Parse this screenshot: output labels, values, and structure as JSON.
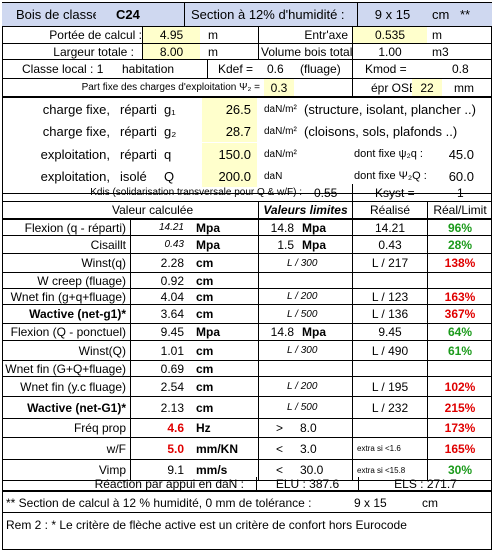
{
  "header": {
    "label": "Bois de classe",
    "classe": "C24",
    "section_label": "Section à 12% d'humidité :",
    "section": "9 x 15",
    "unit": "cm",
    "stars": "**"
  },
  "geometry": {
    "portee_label": "Portée de calcul :",
    "portee": "4.95",
    "portee_unit": "m",
    "entraxe_label": "Entr'axe",
    "entraxe": "0.535",
    "entraxe_unit": "m",
    "largeur_label": "Largeur totale :",
    "largeur": "8.00",
    "largeur_unit": "m",
    "volume_label": "Volume bois total",
    "volume": "1.00",
    "volume_unit": "m3",
    "classe_local_label": "Classe local : 1",
    "classe_local": "habitation",
    "kdef_label": "Kdef =",
    "kdef": "0.6",
    "kdef_note": "(fluage)",
    "kmod_label": "Kmod =",
    "kmod": "0.8",
    "psi2_label": "Part fixe des charges d'exploitation Ψ₂ =",
    "psi2": "0.3",
    "osb_label": "épr OSB :",
    "osb": "22",
    "osb_unit": "mm"
  },
  "loads": [
    {
      "l1": "charge fixe,",
      "l2": "réparti",
      "sym": "g₁",
      "val": "26.5",
      "unit": "daN/m²",
      "note": "(structure, isolant, plancher ..)"
    },
    {
      "l1": "charge fixe,",
      "l2": "réparti",
      "sym": "g₂",
      "val": "28.7",
      "unit": "daN/m²",
      "note": "(cloisons, sols, plafonds ..)"
    },
    {
      "l1": "exploitation,",
      "l2": "réparti",
      "sym": "q",
      "val": "150.0",
      "unit": "daN/m²",
      "note": "dont fixe ψ₂q :",
      "nval": "45.0"
    },
    {
      "l1": "exploitation,",
      "l2": "isolé",
      "sym": "Q",
      "val": "200.0",
      "unit": "daN",
      "note": "dont fixe Ψ₂Q :",
      "nval": "60.0"
    }
  ],
  "kdis": {
    "label": "Kdis (solidarisation transversale pour Q & w/F) :",
    "val": "0.55",
    "ksyst_label": "Ksyst =",
    "ksyst": "1"
  },
  "table_head": {
    "calc": "Valeur calculée",
    "lim": "Valeurs limites",
    "real": "Réalisé",
    "ratio": "Réal/Limit"
  },
  "rows": [
    {
      "label": "Flexion (q - réparti)",
      "calc": "14.21",
      "cunit": "Mpa",
      "lim": "14.8",
      "lunit": "Mpa",
      "real": "14.21",
      "ratio": "96%",
      "rc": "grn",
      "calcstyle": "i"
    },
    {
      "label": "Cisaillt",
      "calc": "0.43",
      "cunit": "Mpa",
      "lim": "1.5",
      "lunit": "Mpa",
      "real": "0.43",
      "ratio": "28%",
      "rc": "grn",
      "calcstyle": "i"
    },
    {
      "label": "Winst(q)",
      "calc": "2.28",
      "cunit": "cm",
      "lim": "L / 300",
      "real": "L / 217",
      "ratio": "138%",
      "rc": "red"
    },
    {
      "label": "W creep (fluage)",
      "calc": "0.92",
      "cunit": "cm",
      "lim": "",
      "real": "",
      "ratio": ""
    },
    {
      "label": "Wnet fin (g+q+fluage)",
      "calc": "4.04",
      "cunit": "cm",
      "lim": "L / 200",
      "real": "L / 123",
      "ratio": "163%",
      "rc": "red"
    },
    {
      "label": "Wactive (net-g1)*",
      "calc": "3.64",
      "cunit": "cm",
      "lim": "L / 500",
      "real": "L / 136",
      "ratio": "367%",
      "rc": "red"
    },
    {
      "label": "Flexion (Q - ponctuel)",
      "calc": "9.45",
      "cunit": "Mpa",
      "lim": "14.8",
      "lunit": "Mpa",
      "real": "9.45",
      "ratio": "64%",
      "rc": "grn"
    },
    {
      "label": "Winst(Q)",
      "calc": "1.01",
      "cunit": "cm",
      "lim": "L / 300",
      "real": "L / 490",
      "ratio": "61%",
      "rc": "grn"
    },
    {
      "label": "Wnet fin (G+Q+fluage)",
      "calc": "0.69",
      "cunit": "cm",
      "lim": "",
      "real": "",
      "ratio": ""
    },
    {
      "label": "Wnet fin (y.c fluage)",
      "calc": "2.54",
      "cunit": "cm",
      "lim": "L / 200",
      "real": "L / 195",
      "ratio": "102%",
      "rc": "red"
    },
    {
      "label": "Wactive (net-G1)*",
      "calc": "2.13",
      "cunit": "cm",
      "lim": "L / 500",
      "real": "L / 232",
      "ratio": "215%",
      "rc": "red"
    },
    {
      "label": "Fréq prop",
      "calc": "4.6",
      "cunit": "Hz",
      "lim": ">",
      "lim2": "8.0",
      "real": "",
      "ratio": "173%",
      "rc": "red",
      "calcred": true
    },
    {
      "label": "w/F",
      "calc": "5.0",
      "cunit": "mm/KN",
      "lim": "<",
      "lim2": "3.0",
      "real": "extra si <1.6",
      "ratio": "165%",
      "rc": "red",
      "calcred": true
    },
    {
      "label": "Vimp",
      "calc": "9.1",
      "cunit": "mm/s",
      "lim": "<",
      "lim2": "30.0",
      "real": "extra si <15.8",
      "ratio": "30%",
      "rc": "grn"
    }
  ],
  "reaction": {
    "label": "Réaction par appui en daN :",
    "elu": "ELU : 387.6",
    "els": "ELS : 271.7"
  },
  "footer": {
    "note1": "** Section de calcul à 12 % humidité, 0 mm de tolérance :",
    "note1_val": "9 x 15",
    "note1_unit": "cm",
    "note2": "Rem 2 : * Le critère de flèche active est un critère de confort hors Eurocode"
  }
}
